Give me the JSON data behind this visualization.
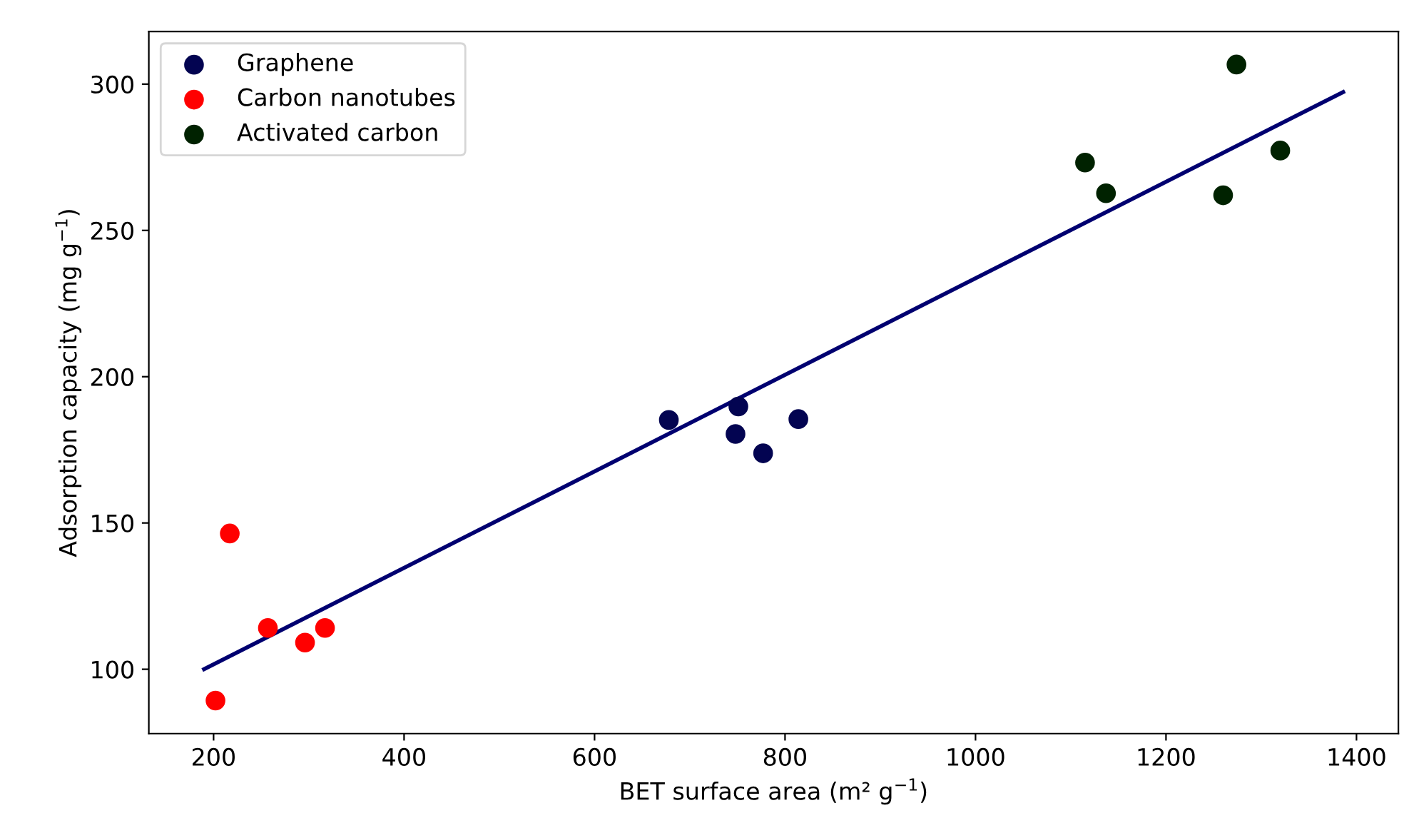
{
  "chart_data": {
    "type": "scatter",
    "xlabel": "BET surface area (m² g$^{−1}$)",
    "ylabel": "Adsorption capacity (mg g$^{−1}$)",
    "xlim": [
      132,
      1444
    ],
    "ylim": [
      78,
      318
    ],
    "xticks": [
      200,
      400,
      600,
      800,
      1000,
      1200,
      1400
    ],
    "yticks": [
      100,
      150,
      200,
      250,
      300
    ],
    "grid": false,
    "legend": "top left",
    "marker": "circle",
    "series": [
      {
        "name": "Graphene",
        "color": "#030451",
        "x": [
          678,
          751,
          748,
          777,
          814
        ],
        "values": [
          185.2,
          189.8,
          180.4,
          173.8,
          185.5
        ]
      },
      {
        "name": "Carbon nanotubes",
        "color": "#ff0000",
        "x": [
          202,
          217,
          257,
          296,
          317
        ],
        "values": [
          89.3,
          146.4,
          114.1,
          109.1,
          114.1
        ]
      },
      {
        "name": "Activated carbon",
        "color": "#002200",
        "x": [
          1115,
          1137,
          1274,
          1260,
          1320
        ],
        "values": [
          273.2,
          262.7,
          306.7,
          262.0,
          277.3
        ]
      },
      {
        "type": "line",
        "marker": "none",
        "color": "#000070",
        "x": [
          190,
          1386
        ],
        "values": [
          100,
          297.3
        ]
      }
    ]
  }
}
